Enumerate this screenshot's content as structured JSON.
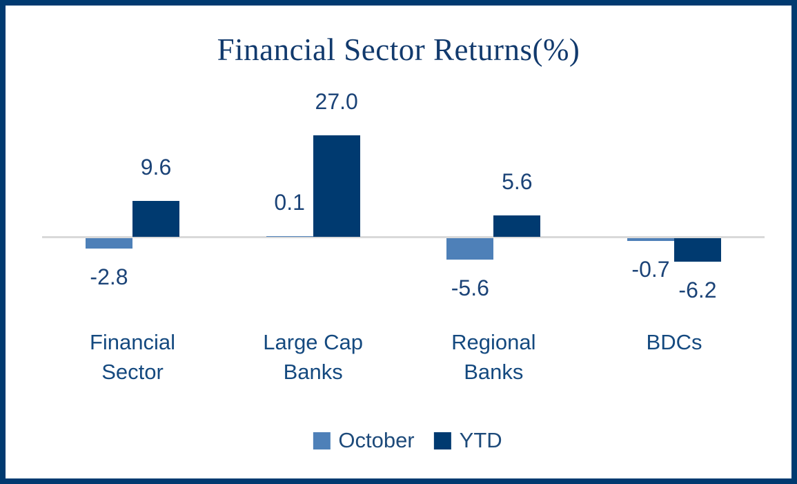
{
  "title": "Financial Sector Returns(%)",
  "chart_data": {
    "type": "bar",
    "title": "Financial Sector Returns(%)",
    "categories": [
      "Financial Sector",
      "Large Cap Banks",
      "Regional Banks",
      "BDCs"
    ],
    "categories_display": [
      "Financial\nSector",
      "Large Cap\nBanks",
      "Regional\nBanks",
      "BDCs"
    ],
    "series": [
      {
        "name": "October",
        "color": "#4E80B8",
        "values": [
          -2.8,
          0.1,
          -5.6,
          -0.7
        ],
        "labels": [
          "-2.8",
          "0.1",
          "-5.6",
          "-0.7"
        ]
      },
      {
        "name": "YTD",
        "color": "#003A70",
        "values": [
          9.6,
          27.0,
          5.6,
          -6.2
        ],
        "labels": [
          "9.6",
          "27.0",
          "5.6",
          "-6.2"
        ]
      }
    ],
    "xlabel": "",
    "ylabel": "",
    "baseline": 0,
    "ylim": [
      -10,
      30
    ],
    "gridlines": false,
    "legend_position": "bottom",
    "axis_line_color": "#D9D9D9"
  },
  "colors": {
    "frame_border": "#003A70",
    "background": "#FFFFFF",
    "title_text": "#123A6D",
    "data_label_text": "#1B4377",
    "category_label_text": "#14497F",
    "legend_text": "#1D4A7A",
    "october_series": "#4E80B8",
    "ytd_series": "#003A70"
  }
}
